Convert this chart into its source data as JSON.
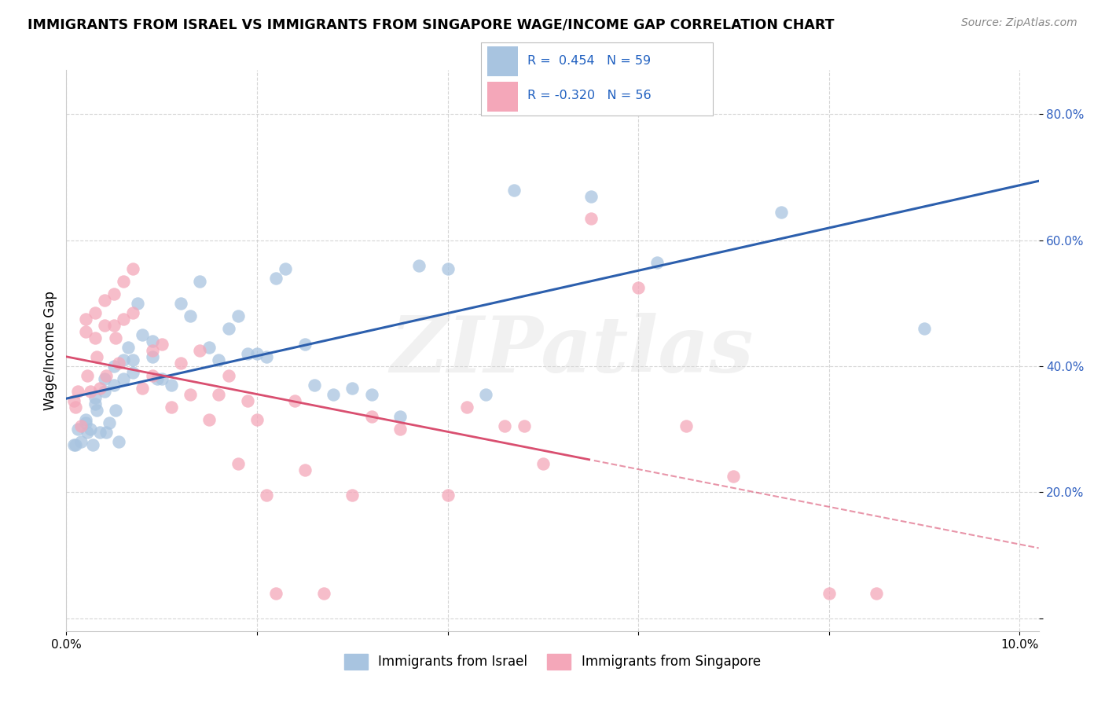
{
  "title": "IMMIGRANTS FROM ISRAEL VS IMMIGRANTS FROM SINGAPORE WAGE/INCOME GAP CORRELATION CHART",
  "source": "Source: ZipAtlas.com",
  "ylabel": "Wage/Income Gap",
  "xlim": [
    0.0,
    0.102
  ],
  "ylim": [
    -0.02,
    0.87
  ],
  "xticks": [
    0.0,
    0.02,
    0.04,
    0.06,
    0.08,
    0.1
  ],
  "xtick_labels": [
    "0.0%",
    "",
    "",
    "",
    "",
    "10.0%"
  ],
  "yticks": [
    0.0,
    0.2,
    0.4,
    0.6,
    0.8
  ],
  "ytick_labels": [
    "",
    "20.0%",
    "40.0%",
    "60.0%",
    "80.0%"
  ],
  "israel_scatter_color": "#a8c4e0",
  "singapore_scatter_color": "#f4a7b9",
  "israel_line_color": "#2c5fad",
  "singapore_line_color": "#d94f70",
  "israel_R": 0.454,
  "israel_N": 59,
  "singapore_R": -0.32,
  "singapore_N": 56,
  "watermark": "ZIPatlas",
  "israel_x": [
    0.0008,
    0.001,
    0.0012,
    0.0015,
    0.002,
    0.002,
    0.0022,
    0.0025,
    0.0028,
    0.003,
    0.003,
    0.0032,
    0.0035,
    0.004,
    0.004,
    0.0042,
    0.0045,
    0.005,
    0.005,
    0.0052,
    0.0055,
    0.006,
    0.006,
    0.0065,
    0.007,
    0.007,
    0.0075,
    0.008,
    0.009,
    0.009,
    0.0095,
    0.01,
    0.011,
    0.012,
    0.013,
    0.014,
    0.015,
    0.016,
    0.017,
    0.018,
    0.019,
    0.02,
    0.021,
    0.022,
    0.023,
    0.025,
    0.026,
    0.028,
    0.03,
    0.032,
    0.035,
    0.037,
    0.04,
    0.044,
    0.047,
    0.055,
    0.062,
    0.075,
    0.09
  ],
  "israel_y": [
    0.275,
    0.275,
    0.3,
    0.28,
    0.315,
    0.31,
    0.295,
    0.3,
    0.275,
    0.35,
    0.34,
    0.33,
    0.295,
    0.38,
    0.36,
    0.295,
    0.31,
    0.4,
    0.37,
    0.33,
    0.28,
    0.41,
    0.38,
    0.43,
    0.41,
    0.39,
    0.5,
    0.45,
    0.44,
    0.415,
    0.38,
    0.38,
    0.37,
    0.5,
    0.48,
    0.535,
    0.43,
    0.41,
    0.46,
    0.48,
    0.42,
    0.42,
    0.415,
    0.54,
    0.555,
    0.435,
    0.37,
    0.355,
    0.365,
    0.355,
    0.32,
    0.56,
    0.555,
    0.355,
    0.68,
    0.67,
    0.565,
    0.645,
    0.46
  ],
  "singapore_x": [
    0.0008,
    0.001,
    0.0012,
    0.0015,
    0.002,
    0.002,
    0.0022,
    0.0025,
    0.003,
    0.003,
    0.0032,
    0.0035,
    0.004,
    0.004,
    0.0042,
    0.005,
    0.005,
    0.0052,
    0.0055,
    0.006,
    0.006,
    0.007,
    0.007,
    0.008,
    0.009,
    0.009,
    0.01,
    0.011,
    0.012,
    0.013,
    0.014,
    0.015,
    0.016,
    0.017,
    0.018,
    0.019,
    0.02,
    0.021,
    0.022,
    0.024,
    0.025,
    0.027,
    0.03,
    0.032,
    0.035,
    0.04,
    0.042,
    0.046,
    0.048,
    0.05,
    0.055,
    0.06,
    0.065,
    0.07,
    0.08,
    0.085
  ],
  "singapore_y": [
    0.345,
    0.335,
    0.36,
    0.305,
    0.475,
    0.455,
    0.385,
    0.36,
    0.485,
    0.445,
    0.415,
    0.365,
    0.505,
    0.465,
    0.385,
    0.515,
    0.465,
    0.445,
    0.405,
    0.535,
    0.475,
    0.555,
    0.485,
    0.365,
    0.425,
    0.385,
    0.435,
    0.335,
    0.405,
    0.355,
    0.425,
    0.315,
    0.355,
    0.385,
    0.245,
    0.345,
    0.315,
    0.195,
    0.04,
    0.345,
    0.235,
    0.04,
    0.195,
    0.32,
    0.3,
    0.195,
    0.335,
    0.305,
    0.305,
    0.245,
    0.635,
    0.525,
    0.305,
    0.225,
    0.04,
    0.04
  ]
}
